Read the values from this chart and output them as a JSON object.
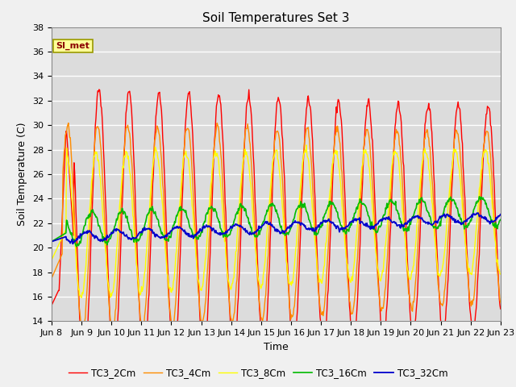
{
  "title": "Soil Temperatures Set 3",
  "xlabel": "Time",
  "ylabel": "Soil Temperature (C)",
  "ylim": [
    14,
    38
  ],
  "annotation": "SI_met",
  "legend": [
    "TC3_2Cm",
    "TC3_4Cm",
    "TC3_8Cm",
    "TC3_16Cm",
    "TC3_32Cm"
  ],
  "colors": [
    "#ff0000",
    "#ff8c00",
    "#ffff00",
    "#00bb00",
    "#0000cc"
  ],
  "bg_color": "#dcdcdc",
  "grid_color": "#ffffff",
  "tick_labels": [
    "Jun 8",
    "Jun 9",
    "Jun 10",
    "Jun 11",
    "Jun 12",
    "Jun 13",
    "Jun 14",
    "Jun 15",
    "Jun 16",
    "Jun 17",
    "Jun 18",
    "Jun 19",
    "Jun 20",
    "Jun 21",
    "Jun 22",
    "Jun 23"
  ],
  "title_fontsize": 11,
  "label_fontsize": 9,
  "tick_fontsize": 8
}
